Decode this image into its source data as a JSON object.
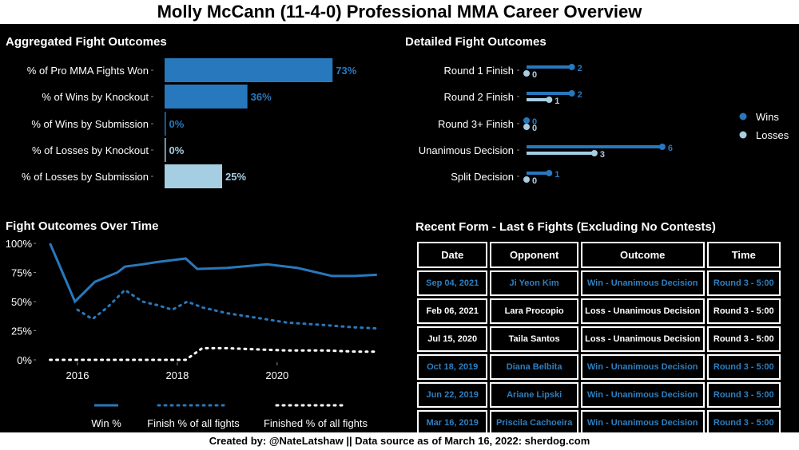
{
  "title": "Molly McCann (11-4-0) Professional MMA Career Overview",
  "footer": "Created by: @NateLatshaw || Data source as of March 16, 2022: sherdog.com",
  "colors": {
    "dark_blue": "#2878bd",
    "light_blue": "#a6cee3",
    "panel_bg": "#000000"
  },
  "chart_data": [
    {
      "id": "aggregated",
      "type": "bar",
      "title": "Aggregated Fight Outcomes",
      "categories": [
        "% of Pro MMA Fights Won",
        "% of Wins by Knockout",
        "% of Wins by Submission",
        "% of Losses by Knockout",
        "% of Losses by Submission"
      ],
      "values": [
        73,
        36,
        0,
        0,
        25
      ],
      "labels": [
        "73%",
        "36%",
        "0%",
        "0%",
        "25%"
      ],
      "colors": [
        "#2878bd",
        "#2878bd",
        "#2878bd",
        "#a6cee3",
        "#a6cee3"
      ],
      "xlim": [
        0,
        100
      ]
    },
    {
      "id": "detailed",
      "type": "bar",
      "title": "Detailed Fight Outcomes",
      "categories": [
        "Round 1 Finish",
        "Round 2 Finish",
        "Round 3+ Finish",
        "Unanimous Decision",
        "Split Decision"
      ],
      "series": [
        {
          "name": "Wins",
          "values": [
            2,
            2,
            0,
            6,
            1
          ],
          "color": "#2878bd"
        },
        {
          "name": "Losses",
          "values": [
            0,
            1,
            0,
            3,
            0
          ],
          "color": "#a6cee3"
        }
      ],
      "xlim": [
        0,
        6.5
      ]
    },
    {
      "id": "over_time",
      "type": "line",
      "title": "Fight Outcomes Over Time",
      "ylim": [
        0,
        100
      ],
      "xlim": [
        2015.2,
        2022.1
      ],
      "yticks": [
        "0%",
        "25%",
        "50%",
        "75%",
        "100%"
      ],
      "ytick_values": [
        0,
        25,
        50,
        75,
        100
      ],
      "xticks": [
        "2016",
        "2018",
        "2020"
      ],
      "xtick_values": [
        2016,
        2018,
        2020
      ],
      "series": [
        {
          "name": "Win %",
          "style": "solid",
          "color": "#2878bd",
          "x": [
            2015.45,
            2015.95,
            2016.35,
            2016.8,
            2016.95,
            2017.3,
            2017.6,
            2018.17,
            2018.4,
            2019.0,
            2019.8,
            2020.4,
            2021.1,
            2021.55,
            2022.0
          ],
          "y": [
            100,
            50,
            67,
            75,
            80,
            82,
            84,
            87,
            78,
            79,
            82,
            79,
            72,
            72,
            73
          ]
        },
        {
          "name": "Finish % of all fights",
          "style": "dotted",
          "color": "#2878bd",
          "x": [
            2016.0,
            2016.3,
            2016.6,
            2016.95,
            2017.3,
            2017.6,
            2017.9,
            2018.2,
            2018.5,
            2019.0,
            2019.6,
            2020.2,
            2020.9,
            2021.5,
            2022.0
          ],
          "y": [
            43,
            35,
            45,
            60,
            50,
            47,
            43,
            50,
            45,
            40,
            36,
            32,
            30,
            28,
            27
          ]
        },
        {
          "name": "Finished % of all fights",
          "style": "dotted",
          "color": "#ffffff",
          "x": [
            2015.45,
            2016.0,
            2016.5,
            2017.0,
            2017.5,
            2018.17,
            2018.5,
            2019.0,
            2019.6,
            2020.2,
            2021.0,
            2021.6,
            2022.0
          ],
          "y": [
            0,
            0,
            0,
            0,
            0,
            0,
            10,
            10,
            9,
            8,
            8,
            7,
            7
          ]
        }
      ]
    }
  ],
  "legend_detailed": [
    {
      "label": "Wins"
    },
    {
      "label": "Losses"
    }
  ],
  "legend_time": [
    {
      "label": "Win %"
    },
    {
      "label": "Finish % of all fights"
    },
    {
      "label": "Finished % of all fights"
    }
  ],
  "recent_form": {
    "title": "Recent Form - Last 6 Fights (Excluding No Contests)",
    "headers": [
      "Date",
      "Opponent",
      "Outcome",
      "Time"
    ],
    "rows": [
      {
        "date": "Sep  04, 2021",
        "opponent": "Ji Yeon Kim",
        "outcome": "Win - Unanimous Decision",
        "time": "Round 3 - 5:00",
        "result": "win"
      },
      {
        "date": "Feb  06, 2021",
        "opponent": "Lara Procopio",
        "outcome": "Loss - Unanimous Decision",
        "time": "Round 3 - 5:00",
        "result": "loss"
      },
      {
        "date": "Jul  15, 2020",
        "opponent": "Taila Santos",
        "outcome": "Loss - Unanimous Decision",
        "time": "Round 3 - 5:00",
        "result": "loss"
      },
      {
        "date": "Oct  18, 2019",
        "opponent": "Diana Belbita",
        "outcome": "Win - Unanimous Decision",
        "time": "Round 3 - 5:00",
        "result": "win"
      },
      {
        "date": "Jun  22, 2019",
        "opponent": "Ariane Lipski",
        "outcome": "Win - Unanimous Decision",
        "time": "Round 3 - 5:00",
        "result": "win"
      },
      {
        "date": "Mar  16, 2019",
        "opponent": "Priscila Cachoeira",
        "outcome": "Win - Unanimous Decision",
        "time": "Round 3 - 5:00",
        "result": "win"
      }
    ]
  }
}
